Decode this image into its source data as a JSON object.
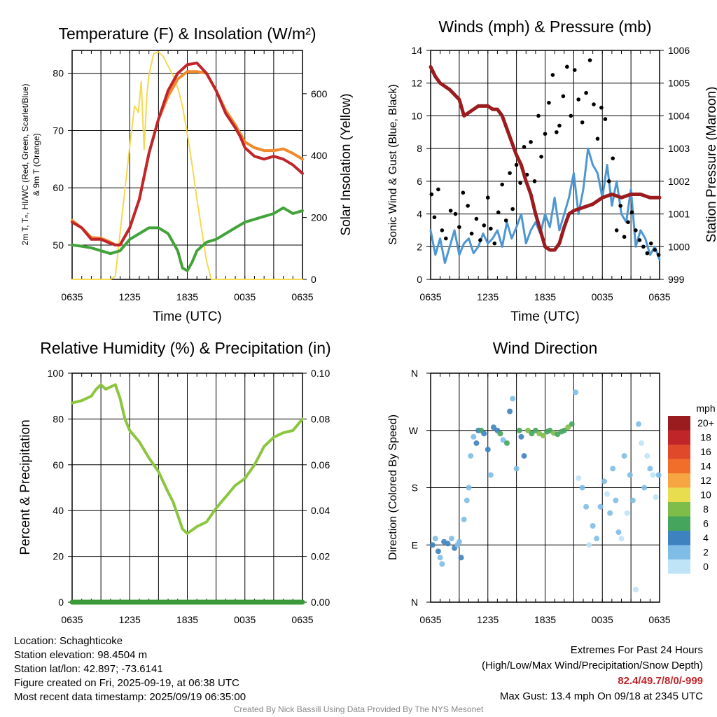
{
  "panels": {
    "temperature": {
      "title": "Temperature (F) & Insolation (W/m²)",
      "ylabel_left_line1": "2m T, Tₙ, HI/WC (Red, Green, Scarlet/Blue)",
      "ylabel_left_line2": "& 9m T (Orange)",
      "ylabel_right": "Solar Insolation (Yellow)",
      "xlabel": "Time (UTC)"
    },
    "winds": {
      "title": "Winds (mph) & Pressure (mb)",
      "ylabel_left": "Sonic Wind & Gust (Blue, Black)",
      "ylabel_right": "Station Pressure (Maroon)",
      "xlabel": "Time (UTC)"
    },
    "humidity": {
      "title": "Relative Humidity (%) & Precipitation (in)",
      "ylabel_left": "Percent & Precipitation"
    },
    "direction": {
      "title": "Wind Direction",
      "ylabel_left": "Direction (Colored By Speed)",
      "legend_title": "mph"
    }
  },
  "info": {
    "location": "Location: Schaghticoke",
    "elevation": "Station elevation: 98.4504 m",
    "latlon": "Station lat/lon: 42.897; -73.6141",
    "created": "Figure created on Fri, 2025-09-19, at 06:38 UTC",
    "recent": "Most recent data timestamp: 2025/09/19 06:35:00"
  },
  "extremes": {
    "title": "Extremes For Past 24 Hours",
    "subtitle": "(High/Low/Max Wind/Precipitation/Snow Depth)",
    "values": "82.4/49.7/8/0/-999",
    "gust": "Max Gust: 13.4 mph On 09/18 at 2345 UTC"
  },
  "credit": "Created By Nick Bassill Using Data Provided By The NYS Mesonet",
  "colors": {
    "temp_red": "#c0252a",
    "orange": "#f08a2c",
    "scarlet": "#e04a2a",
    "green": "#42a33a",
    "yellow": "#f5d94e",
    "wind_blue": "#4d97d3",
    "gust_black": "#000000",
    "pressure_maroon": "#9b1c1f",
    "rh_green": "#8cc63f",
    "precip_green": "#3d9a3a"
  },
  "chart_data": [
    {
      "type": "line",
      "id": "temperature",
      "title": "Temperature (F) & Insolation (W/m²)",
      "xlabel": "Time (UTC)",
      "x_ticks": [
        "0635",
        "1235",
        "1835",
        "0035",
        "0635"
      ],
      "x_hours": [
        0,
        24
      ],
      "ylim": [
        44,
        84
      ],
      "y_ticks": [
        50,
        60,
        70,
        80
      ],
      "y2lim": [
        0,
        740
      ],
      "y2_ticks": [
        0,
        200,
        400,
        600
      ],
      "grid": true,
      "series": [
        {
          "axis": "left",
          "color": "#f08a2c",
          "width": 4,
          "x": [
            0,
            1,
            2,
            3,
            4,
            4.5,
            5,
            6,
            7,
            8,
            9,
            10,
            11,
            12,
            13,
            14,
            15,
            16,
            17,
            17.5,
            18,
            19,
            20,
            21,
            22,
            23,
            24
          ],
          "y": [
            54.3,
            53,
            51.3,
            51.2,
            50.5,
            50,
            50,
            53,
            58,
            66,
            72,
            76,
            79,
            80.3,
            80.3,
            80,
            77,
            73.5,
            71,
            69.5,
            68,
            67,
            66.5,
            66.5,
            66.8,
            66,
            65
          ]
        },
        {
          "axis": "left",
          "color": "#c0252a",
          "width": 4,
          "x": [
            0,
            1,
            2,
            3,
            4,
            4.5,
            5,
            6,
            7,
            8,
            9,
            10,
            11,
            12,
            13,
            14,
            15,
            16,
            17,
            17.5,
            18,
            19,
            20,
            21,
            22,
            23,
            24
          ],
          "y": [
            54,
            53,
            51,
            51,
            50.3,
            50,
            50,
            53,
            58,
            66,
            72,
            77,
            80,
            81.5,
            81.8,
            80,
            77,
            73,
            70.5,
            69,
            67,
            65.5,
            65,
            65.5,
            65,
            64,
            62.5
          ]
        },
        {
          "axis": "left",
          "color": "#42a33a",
          "width": 4,
          "x": [
            0,
            1,
            2,
            3,
            4,
            5,
            6,
            7,
            8,
            9,
            10,
            11,
            11.5,
            12,
            12.5,
            13,
            14,
            15,
            16,
            17,
            18,
            19,
            20,
            21,
            22,
            23,
            24
          ],
          "y": [
            50,
            49.8,
            49.5,
            49,
            48.5,
            49,
            51,
            52,
            53,
            53,
            52,
            49,
            46,
            45.5,
            47,
            49,
            50.5,
            51,
            52,
            53,
            54,
            54.5,
            55,
            55.5,
            56.5,
            55.5,
            56
          ]
        },
        {
          "axis": "right",
          "color": "#f5d94e",
          "width": 2,
          "x": [
            0,
            3,
            3.5,
            4,
            4.5,
            5,
            6,
            6.5,
            6.9,
            7.2,
            7.5,
            7.8,
            8,
            8.5,
            9,
            9.5,
            10,
            10.5,
            11,
            11.5,
            12,
            12.5,
            13,
            14,
            14.5,
            15,
            24
          ],
          "y": [
            0,
            0,
            0,
            0,
            10,
            150,
            430,
            560,
            540,
            640,
            420,
            600,
            660,
            730,
            735,
            720,
            690,
            660,
            620,
            560,
            470,
            370,
            260,
            60,
            0,
            0,
            0
          ]
        }
      ]
    },
    {
      "type": "line",
      "id": "winds",
      "title": "Winds (mph) & Pressure (mb)",
      "xlabel": "Time (UTC)",
      "x_ticks": [
        "0635",
        "1235",
        "1835",
        "0035",
        "0635"
      ],
      "ylim": [
        0,
        14
      ],
      "y_ticks": [
        0,
        2,
        4,
        6,
        8,
        10,
        12,
        14
      ],
      "y2lim": [
        999,
        1006
      ],
      "y2_ticks": [
        999,
        1000,
        1001,
        1002,
        1003,
        1004,
        1005,
        1006
      ],
      "grid": true,
      "series": [
        {
          "axis": "left",
          "kind": "line",
          "color": "#4d97d3",
          "x": [
            0,
            0.5,
            1,
            1.5,
            2,
            2.5,
            3,
            3.5,
            4,
            4.5,
            5,
            5.5,
            6,
            6.5,
            7,
            7.5,
            8,
            8.5,
            9,
            9.5,
            10,
            10.5,
            11,
            11.5,
            12,
            12.5,
            13,
            13.5,
            14,
            14.5,
            15,
            15.5,
            16,
            16.5,
            17,
            17.5,
            18,
            18.5,
            19,
            19.5,
            20,
            20.5,
            21,
            21.5,
            22,
            22.5,
            23,
            23.5,
            24
          ],
          "y": [
            3,
            1.5,
            2.5,
            1,
            2,
            3,
            1.5,
            2.2,
            2.5,
            1.6,
            2,
            2.8,
            2.2,
            2.5,
            3,
            2,
            3.5,
            2.5,
            3.2,
            4,
            2.2,
            3,
            3.5,
            2.8,
            4,
            3.2,
            5,
            3,
            4,
            5,
            6.5,
            4,
            5.5,
            8,
            7,
            6.5,
            5,
            7,
            4.5,
            6,
            4,
            3.5,
            5.5,
            2,
            3,
            2.5,
            1.5,
            2,
            1.2
          ]
        },
        {
          "axis": "left",
          "kind": "points",
          "color": "#000000",
          "x": [
            0.1,
            0.4,
            0.8,
            1.2,
            1.6,
            2.1,
            2.6,
            3.0,
            3.4,
            3.9,
            4.3,
            4.8,
            5.2,
            5.6,
            6.0,
            6.3,
            6.7,
            7.1,
            7.5,
            7.9,
            8.3,
            8.6,
            9.0,
            9.4,
            9.8,
            10.1,
            10.5,
            10.9,
            11.3,
            11.6,
            12.0,
            12.4,
            12.8,
            13.2,
            13.5,
            13.9,
            14.3,
            14.7,
            15.1,
            15.5,
            15.9,
            16.3,
            16.7,
            17.1,
            17.5,
            17.9,
            18.3,
            18.7,
            19.1,
            19.5,
            19.9,
            20.3,
            20.7,
            21.1,
            21.5,
            21.9,
            22.3,
            22.7,
            23.1,
            23.5,
            23.9
          ],
          "y": [
            5.2,
            3.8,
            5.5,
            3.0,
            2.5,
            4.2,
            4.0,
            3.2,
            5.3,
            4.5,
            2.8,
            3.7,
            2.4,
            3.3,
            5.0,
            3.1,
            2.2,
            4.1,
            5.8,
            3.6,
            6.5,
            4.3,
            7.0,
            5.9,
            8.1,
            6.4,
            8.4,
            6.0,
            10.0,
            7.5,
            8.9,
            10.8,
            12.5,
            9.0,
            9.4,
            11.2,
            13.0,
            10.0,
            12.8,
            11.0,
            9.6,
            11.4,
            13.4,
            10.7,
            8.6,
            10.5,
            9.8,
            6.0,
            7.4,
            3.0,
            4.5,
            2.6,
            3.5,
            4.1,
            3.0,
            2.4,
            2.0,
            1.6,
            2.2,
            1.8,
            1.5
          ]
        },
        {
          "axis": "right",
          "kind": "line",
          "color": "#9b1c1f",
          "x": [
            0,
            0.5,
            1,
            2,
            3,
            3.5,
            4,
            5,
            6,
            6.5,
            7,
            7.5,
            8,
            8.5,
            9,
            9.5,
            10,
            10.5,
            11,
            11.5,
            12,
            12.5,
            13,
            13.5,
            14,
            14.5,
            15,
            16,
            17,
            18,
            19,
            20,
            21,
            22,
            23,
            24
          ],
          "y": [
            1005.5,
            1005.2,
            1005.0,
            1004.8,
            1004.5,
            1004.0,
            1004.1,
            1004.3,
            1004.3,
            1004.2,
            1004.2,
            1004.0,
            1003.6,
            1003.2,
            1002.8,
            1002.5,
            1002.0,
            1001.6,
            1001.0,
            1000.5,
            1000.0,
            999.9,
            999.9,
            1000.1,
            1000.6,
            1001.0,
            1001.1,
            1001.2,
            1001.3,
            1001.5,
            1001.6,
            1001.5,
            1001.6,
            1001.6,
            1001.5,
            1001.5
          ]
        }
      ]
    },
    {
      "type": "line",
      "id": "humidity",
      "title": "Relative Humidity (%) & Precipitation (in)",
      "x_ticks": [
        "0635",
        "1235",
        "1835",
        "0035",
        "0635"
      ],
      "ylim": [
        0,
        100
      ],
      "y_ticks": [
        0,
        20,
        40,
        60,
        80,
        100
      ],
      "y2lim": [
        0,
        0.1
      ],
      "y2_ticks": [
        "0.00",
        "0.02",
        "0.04",
        "0.06",
        "0.08",
        "0.10"
      ],
      "grid": true,
      "series": [
        {
          "axis": "left",
          "color": "#8cc63f",
          "width": 4,
          "x": [
            0,
            1,
            2,
            2.5,
            3,
            3.5,
            4,
            4.5,
            5,
            5.5,
            6,
            7,
            8,
            9,
            10,
            10.5,
            11,
            11.5,
            12,
            13,
            14,
            15,
            16,
            17,
            18,
            19,
            20,
            21,
            22,
            23,
            24
          ],
          "y": [
            87,
            88,
            90,
            93,
            95,
            93,
            94,
            95,
            89,
            80,
            75,
            70,
            63,
            57,
            48,
            44,
            38,
            32,
            30,
            33,
            35,
            41,
            46,
            51,
            54,
            60,
            68,
            72,
            74,
            75,
            80
          ]
        },
        {
          "axis": "right",
          "color": "#3d9a3a",
          "width": 7,
          "x": [
            0,
            24
          ],
          "y": [
            0,
            0
          ]
        }
      ]
    },
    {
      "type": "scatter",
      "id": "direction",
      "title": "Wind Direction",
      "x_ticks": [
        "0635",
        "1235",
        "1835",
        "0035",
        "0635"
      ],
      "y_ticks": [
        "N",
        "E",
        "S",
        "W",
        "N"
      ],
      "ylim": [
        0,
        360
      ],
      "grid": true,
      "legend": {
        "title": "mph",
        "labels": [
          "20+",
          "18",
          "16",
          "14",
          "12",
          "10",
          "8",
          "6",
          "4",
          "2",
          "0"
        ],
        "colors": [
          "#9a1c1f",
          "#c0252a",
          "#e04a2a",
          "#f06d2a",
          "#f7a543",
          "#e8dd4f",
          "#7fbd4a",
          "#45a55c",
          "#3e82c0",
          "#7fbce6",
          "#bfe3f7"
        ]
      },
      "points": {
        "x": [
          0.2,
          0.5,
          0.8,
          1.0,
          1.2,
          1.4,
          1.8,
          2.2,
          2.5,
          2.8,
          3.0,
          3.2,
          3.5,
          3.8,
          4.0,
          4.2,
          4.5,
          4.8,
          5.0,
          5.3,
          5.6,
          6.0,
          6.3,
          6.6,
          7.0,
          7.3,
          7.6,
          8.0,
          8.3,
          8.6,
          9.0,
          9.3,
          9.5,
          9.8,
          10.2,
          10.6,
          11.0,
          11.4,
          11.8,
          12.2,
          12.5,
          12.9,
          13.3,
          13.7,
          14.0,
          14.4,
          14.8,
          15.2,
          15.5,
          15.9,
          16.3,
          16.6,
          17.0,
          17.4,
          17.8,
          18.2,
          18.5,
          18.8,
          19.1,
          19.4,
          19.7,
          20.0,
          20.3,
          20.6,
          20.9,
          21.2,
          21.5,
          21.8,
          22.1,
          22.4,
          22.7,
          23.0,
          23.3,
          23.6,
          23.9
        ],
        "y": [
          90,
          100,
          80,
          70,
          60,
          95,
          92,
          100,
          85,
          90,
          95,
          70,
          130,
          160,
          180,
          230,
          260,
          250,
          270,
          270,
          265,
          240,
          200,
          275,
          270,
          265,
          255,
          250,
          300,
          320,
          210,
          270,
          260,
          230,
          270,
          265,
          270,
          265,
          262,
          268,
          270,
          266,
          264,
          268,
          270,
          275,
          280,
          330,
          195,
          180,
          150,
          90,
          120,
          100,
          150,
          190,
          170,
          140,
          210,
          160,
          110,
          100,
          230,
          140,
          200,
          160,
          20,
          280,
          250,
          180,
          230,
          210,
          200,
          165,
          200
        ],
        "speed": [
          3,
          2,
          4,
          2,
          1,
          3,
          4,
          2,
          3,
          1,
          2,
          3,
          2,
          1,
          1,
          2,
          2,
          3,
          4,
          5,
          4,
          3,
          2,
          4,
          3,
          5,
          2,
          6,
          3,
          1,
          2,
          6,
          3,
          4,
          7,
          6,
          6,
          7,
          8,
          5,
          6,
          7,
          6,
          5,
          6,
          7,
          5,
          1,
          0,
          1,
          1,
          0,
          1,
          2,
          2,
          1,
          0,
          1,
          1,
          2,
          1,
          0,
          1,
          0,
          2,
          1,
          0,
          1,
          0,
          1,
          0,
          1,
          0,
          0,
          1
        ]
      }
    }
  ]
}
